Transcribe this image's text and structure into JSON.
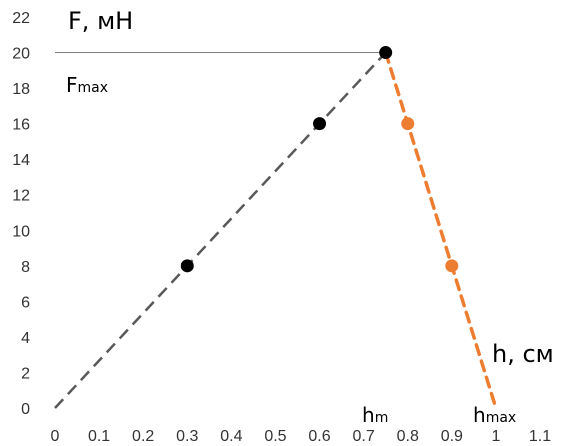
{
  "chart_data": {
    "type": "scatter",
    "xlim": [
      0,
      1.1
    ],
    "ylim": [
      0,
      22
    ],
    "x_ticks": [
      "0",
      "0.1",
      "0.2",
      "0.3",
      "0.4",
      "0.5",
      "0.6",
      "0.7",
      "0.8",
      "0.9",
      "1",
      "1.1"
    ],
    "y_ticks": [
      "0",
      "2",
      "4",
      "6",
      "8",
      "10",
      "12",
      "14",
      "16",
      "18",
      "20",
      "22"
    ],
    "x_tick_values": [
      0,
      0.1,
      0.2,
      0.3,
      0.4,
      0.5,
      0.6,
      0.7,
      0.8,
      0.9,
      1,
      1.1
    ],
    "y_tick_values": [
      0,
      2,
      4,
      6,
      8,
      10,
      12,
      14,
      16,
      18,
      20,
      22
    ],
    "grid": false,
    "series": [
      {
        "color": "#000000",
        "line_color": "#595959",
        "line_style": "dashed",
        "line": [
          [
            0,
            0
          ],
          [
            0.75,
            20
          ]
        ],
        "points": [
          [
            0.3,
            8
          ],
          [
            0.6,
            16
          ],
          [
            0.75,
            20
          ]
        ]
      },
      {
        "color": "#ED7D31",
        "line_color": "#ED7D31",
        "line_style": "dashed",
        "line": [
          [
            0.75,
            20
          ],
          [
            1,
            0
          ]
        ],
        "points": [
          [
            0.8,
            16
          ],
          [
            0.9,
            8
          ]
        ]
      }
    ],
    "guide_lines": [
      {
        "from": [
          0,
          20
        ],
        "to": [
          0.75,
          20
        ]
      }
    ],
    "annotations": {
      "y_axis_label": "F, мН",
      "fmax_main": "F",
      "fmax_sub": "max",
      "x_axis_label": "h, см",
      "hm_main": "h",
      "hm_sub": "m",
      "hmax_main": "h",
      "hmax_sub": "max"
    }
  }
}
